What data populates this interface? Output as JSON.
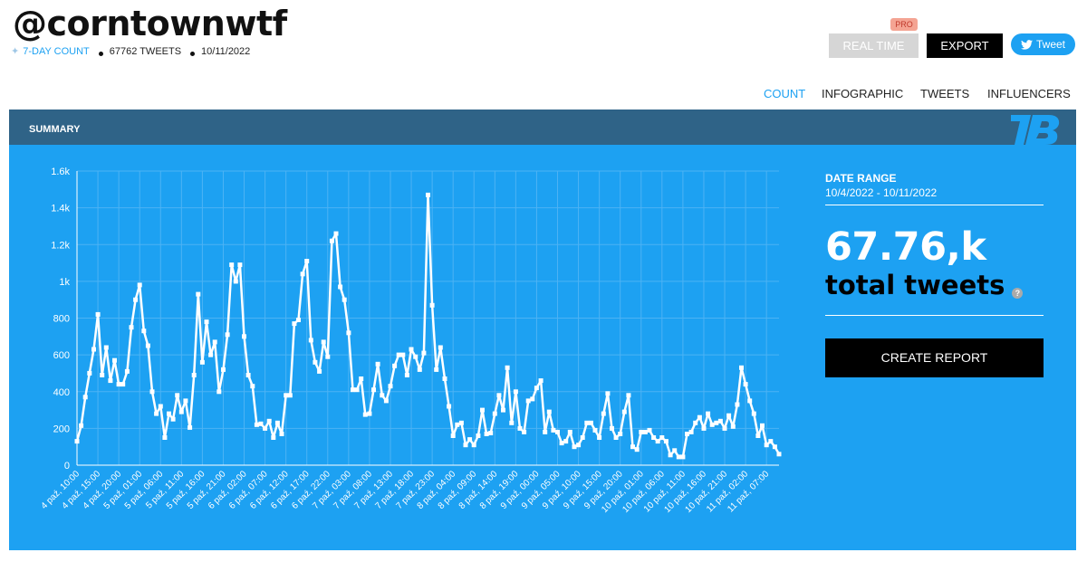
{
  "header": {
    "handle": "@corntownwtf",
    "count_link": "7-DAY COUNT",
    "tweets": "67762 TWEETS",
    "date": "10/11/2022",
    "pro_badge": "PRO",
    "realtime_label": "REAL TIME",
    "export_label": "EXPORT",
    "tweet_label": "Tweet"
  },
  "nav": [
    {
      "label": "COUNT",
      "active": true
    },
    {
      "label": "INFOGRAPHIC",
      "active": false
    },
    {
      "label": "TWEETS",
      "active": false
    },
    {
      "label": "INFLUENCERS",
      "active": false
    }
  ],
  "summary": {
    "title": "SUMMARY",
    "date_range_label": "DATE RANGE",
    "date_range_value": "10/4/2022 - 10/11/2022",
    "total_number": "67.76,k",
    "total_label": "total tweets",
    "help": "?",
    "create_report_label": "CREATE REPORT"
  },
  "colors": {
    "panel": "#1da1f2",
    "band": "#2f6387",
    "line": "#ffffff",
    "accent": "#1da1f2"
  },
  "chart_data": {
    "type": "line",
    "title": "",
    "xlabel": "",
    "ylabel": "",
    "ylim": [
      0,
      1600
    ],
    "yticks": [
      0,
      200,
      400,
      600,
      800,
      1000,
      1200,
      1400,
      1600
    ],
    "ytick_labels": [
      "0",
      "200",
      "400",
      "600",
      "800",
      "1k",
      "1.2k",
      "1.4k",
      "1.6k"
    ],
    "grid": true,
    "start": "4 paź, 10:00",
    "interval_hours": 1,
    "xtick_every": 5,
    "xtick_labels": [
      "4 paź, 10:00",
      "4 paź, 15:00",
      "4 paź, 20:00",
      "5 paź, 01:00",
      "5 paź, 06:00",
      "5 paź, 11:00",
      "5 paź, 16:00",
      "5 paź, 21:00",
      "6 paź, 02:00",
      "6 paź, 07:00",
      "6 paź, 12:00",
      "6 paź, 17:00",
      "6 paź, 22:00",
      "7 paź, 03:00",
      "7 paź, 08:00",
      "7 paź, 13:00",
      "7 paź, 18:00",
      "7 paź, 23:00",
      "8 paź, 04:00",
      "8 paź, 09:00",
      "8 paź, 14:00",
      "8 paź, 19:00",
      "9 paź, 00:00",
      "9 paź, 05:00",
      "9 paź, 10:00",
      "9 paź, 15:00",
      "9 paź, 20:00",
      "10 paź, 01:00",
      "10 paź, 06:00",
      "10 paź, 11:00",
      "10 paź, 16:00",
      "10 paź, 21:00",
      "11 paź, 02:00",
      "11 paź, 07:00"
    ],
    "values": [
      130,
      215,
      370,
      500,
      630,
      820,
      490,
      640,
      460,
      570,
      440,
      440,
      510,
      750,
      900,
      980,
      730,
      650,
      400,
      280,
      320,
      150,
      280,
      250,
      380,
      290,
      350,
      205,
      490,
      930,
      560,
      780,
      600,
      670,
      400,
      520,
      710,
      1090,
      1000,
      1090,
      700,
      490,
      430,
      220,
      225,
      200,
      240,
      150,
      230,
      170,
      380,
      380,
      770,
      790,
      1040,
      1110,
      680,
      560,
      510,
      670,
      590,
      1220,
      1260,
      970,
      900,
      720,
      410,
      410,
      470,
      275,
      280,
      410,
      550,
      380,
      350,
      430,
      540,
      600,
      600,
      490,
      630,
      590,
      520,
      610,
      1470,
      870,
      520,
      640,
      470,
      320,
      160,
      220,
      230,
      110,
      140,
      110,
      160,
      300,
      170,
      175,
      280,
      380,
      300,
      530,
      230,
      400,
      200,
      180,
      350,
      360,
      420,
      460,
      180,
      290,
      190,
      180,
      120,
      130,
      180,
      100,
      110,
      150,
      230,
      230,
      190,
      150,
      280,
      390,
      200,
      150,
      170,
      290,
      380,
      100,
      85,
      180,
      180,
      190,
      150,
      130,
      150,
      130,
      55,
      80,
      45,
      45,
      170,
      180,
      230,
      260,
      200,
      280,
      220,
      230,
      240,
      200,
      270,
      210,
      330,
      530,
      440,
      350,
      280,
      160,
      215,
      110,
      130,
      100,
      60
    ]
  }
}
